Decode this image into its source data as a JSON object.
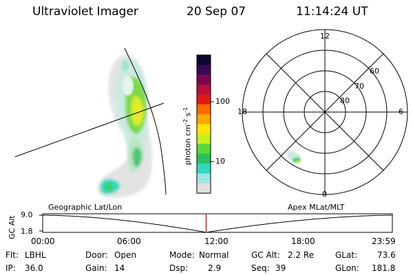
{
  "header": {
    "instrument": "Ultraviolet Imager",
    "date": "20 Sep 07",
    "time": "11:14:24 UT"
  },
  "colorbar": {
    "label": "photon cm",
    "unit_exp1": "-2",
    "unit_mid": "s",
    "unit_exp2": "-1",
    "tick_100": "100",
    "tick_10": "10",
    "colors": [
      "#0a0830",
      "#3a0a50",
      "#7a0850",
      "#b8103a",
      "#e01818",
      "#ff6a00",
      "#ffa800",
      "#ffe400",
      "#c8f020",
      "#58d838",
      "#28c060",
      "#30d8c0",
      "#9ee4e4",
      "#e0e0e0"
    ]
  },
  "polar": {
    "ring_labels": [
      "80",
      "70",
      "60"
    ],
    "mlt_labels": {
      "top": "12",
      "bottom": "0",
      "left": "18",
      "right": "6"
    }
  },
  "timeline": {
    "axis_label": "GC Alt",
    "y_top": "9.0",
    "y_bottom": "1.8",
    "left_label": "Geographic Lat/Lon",
    "right_label": "Apex  MLat/MLT",
    "time_ticks": [
      "00:00",
      "06:00",
      "12:00",
      "18:00",
      "23:59"
    ],
    "current_fraction": 0.4676,
    "marker_color": "#dd0000"
  },
  "info": {
    "filter_label": "Flt:",
    "filter_value": "LBHL",
    "ip_label": "IP:",
    "ip_value": "36.0",
    "door_label": "Door:",
    "door_value": "Open",
    "gain_label": "Gain:",
    "gain_value": "14",
    "mode_label": "Mode:",
    "mode_value": "Normal",
    "dsp_label": "Dsp:",
    "dsp_value": "2.9",
    "gcalt_label": "GC Alt:",
    "gcalt_value": "2.2 Re",
    "seq_label": "Seq:",
    "seq_value": "39",
    "glat_label": "GLat:",
    "glat_value": "73.6",
    "glon_label": "GLon:",
    "glon_value": "181.8"
  }
}
